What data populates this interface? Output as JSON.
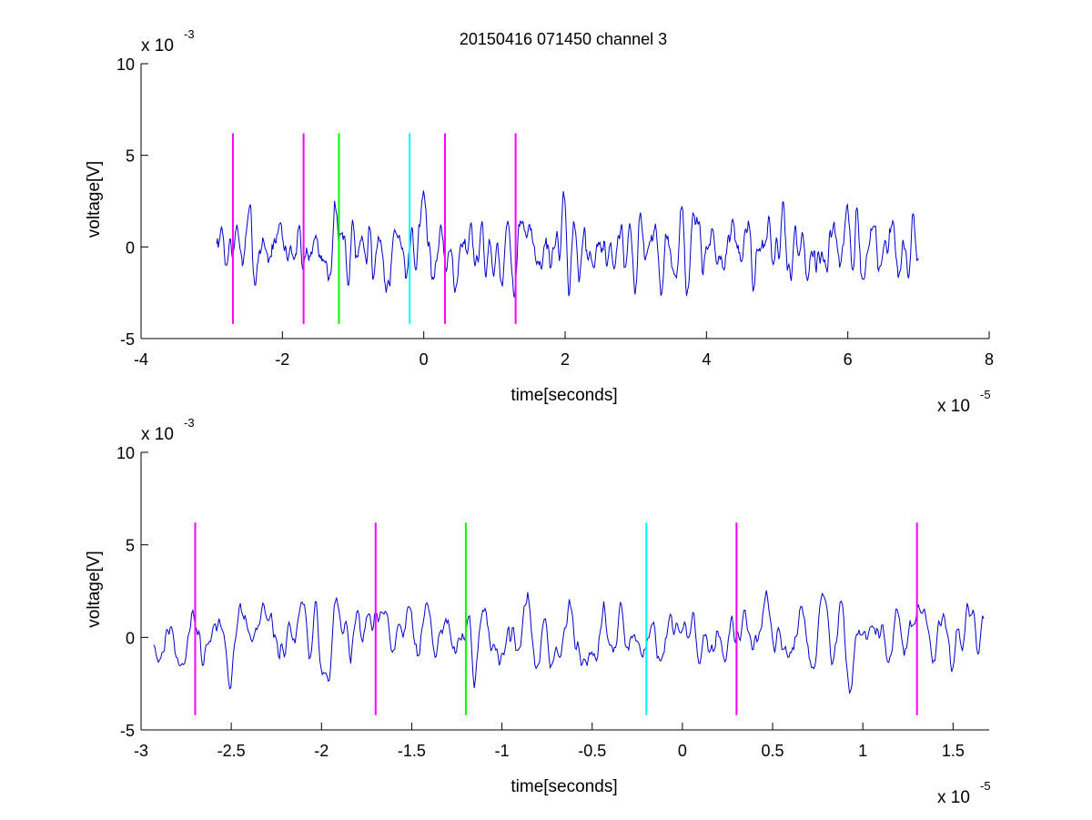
{
  "figure": {
    "title": "20150416 071450 channel 3"
  },
  "chart_data": [
    {
      "type": "line",
      "title": "20150416 071450 channel 3",
      "xlabel": "time[seconds]",
      "ylabel": "voltage[V]",
      "x_multiplier": "x 10",
      "x_exponent": "-5",
      "y_multiplier": "x 10",
      "y_exponent": "-3",
      "xlim": [
        -4,
        8
      ],
      "ylim": [
        -5,
        10
      ],
      "xticks": [
        -4,
        -2,
        0,
        2,
        4,
        6,
        8
      ],
      "xtick_labels": [
        "-4",
        "-2",
        "0",
        "2",
        "4",
        "6",
        "8"
      ],
      "yticks": [
        -5,
        0,
        5,
        10
      ],
      "ytick_labels": [
        "-5",
        "0",
        "5",
        "10"
      ],
      "grid": false,
      "signal_color": "#0000cc",
      "signal_span": [
        -2.93,
        7.0
      ],
      "signal_seed": 7,
      "signal_points": 900,
      "markers": [
        {
          "x": -2.7,
          "color": "#ff00ff",
          "ymin": -4.2,
          "ymax": 6.2
        },
        {
          "x": -1.7,
          "color": "#ff00ff",
          "ymin": -4.2,
          "ymax": 6.2
        },
        {
          "x": -1.2,
          "color": "#00ff00",
          "ymin": -4.2,
          "ymax": 6.2
        },
        {
          "x": -0.2,
          "color": "#00ffff",
          "ymin": -4.2,
          "ymax": 6.2
        },
        {
          "x": 0.3,
          "color": "#ff00ff",
          "ymin": -4.2,
          "ymax": 6.2
        },
        {
          "x": 1.3,
          "color": "#ff00ff",
          "ymin": -4.2,
          "ymax": 6.2
        }
      ]
    },
    {
      "type": "line",
      "title": "",
      "xlabel": "time[seconds]",
      "ylabel": "voltage[V]",
      "x_multiplier": "x 10",
      "x_exponent": "-5",
      "y_multiplier": "x 10",
      "y_exponent": "-3",
      "xlim": [
        -3,
        1.7
      ],
      "ylim": [
        -5,
        10
      ],
      "xticks": [
        -3,
        -2.5,
        -2,
        -1.5,
        -1,
        -0.5,
        0,
        0.5,
        1,
        1.5
      ],
      "xtick_labels": [
        "-3",
        "-2.5",
        "-2",
        "-1.5",
        "-1",
        "-0.5",
        "0",
        "0.5",
        "1",
        "1.5"
      ],
      "yticks": [
        -5,
        0,
        5,
        10
      ],
      "ytick_labels": [
        "-5",
        "0",
        "5",
        "10"
      ],
      "grid": false,
      "signal_color": "#0000cc",
      "signal_span": [
        -2.93,
        1.67
      ],
      "signal_seed": 11,
      "signal_points": 700,
      "markers": [
        {
          "x": -2.7,
          "color": "#ff00ff",
          "ymin": -4.2,
          "ymax": 6.2
        },
        {
          "x": -1.7,
          "color": "#ff00ff",
          "ymin": -4.2,
          "ymax": 6.2
        },
        {
          "x": -1.2,
          "color": "#00ff00",
          "ymin": -4.2,
          "ymax": 6.2
        },
        {
          "x": -0.2,
          "color": "#00ffff",
          "ymin": -4.2,
          "ymax": 6.2
        },
        {
          "x": 0.3,
          "color": "#ff00ff",
          "ymin": -4.2,
          "ymax": 6.2
        },
        {
          "x": 1.3,
          "color": "#ff00ff",
          "ymin": -4.2,
          "ymax": 6.2
        }
      ]
    }
  ]
}
